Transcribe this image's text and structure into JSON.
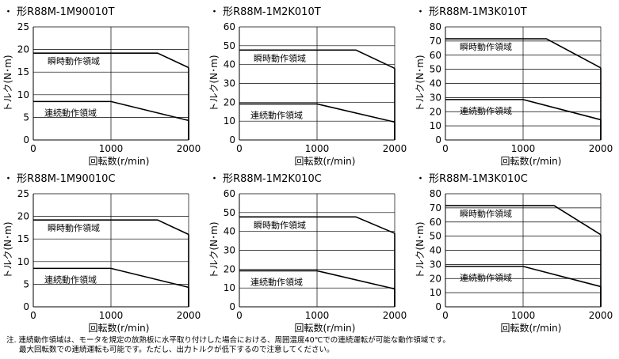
{
  "chart_data": [
    {
      "type": "line",
      "title": "・ 形R88M-1M90010T",
      "ylabel": "トルク(N･m)",
      "xlabel": "回転数(r/min)",
      "ylim": [
        0,
        25
      ],
      "yticks": [
        0,
        5,
        10,
        15,
        20,
        25
      ],
      "xlim": [
        0,
        2000
      ],
      "xticks": [
        0,
        1000,
        2000
      ],
      "series": [
        {
          "name": "瞬時動作領域",
          "x": [
            0,
            1600,
            2000
          ],
          "y": [
            19.2,
            19.2,
            16.0
          ]
        },
        {
          "name": "連続動作領域",
          "x": [
            0,
            1000,
            2000
          ],
          "y": [
            8.5,
            8.5,
            4.3
          ]
        }
      ]
    },
    {
      "type": "line",
      "title": "・ 形R88M-1M2K010T",
      "ylabel": "トルク(N･m)",
      "xlabel": "回転数(r/min)",
      "ylim": [
        0,
        60
      ],
      "yticks": [
        0,
        10,
        20,
        30,
        40,
        50,
        60
      ],
      "xlim": [
        0,
        2000
      ],
      "xticks": [
        0,
        1000,
        2000
      ],
      "series": [
        {
          "name": "瞬時動作領域",
          "x": [
            0,
            1500,
            2000
          ],
          "y": [
            47.7,
            47.7,
            38.0
          ]
        },
        {
          "name": "連続動作領域",
          "x": [
            0,
            1000,
            2000
          ],
          "y": [
            19.1,
            19.1,
            9.5
          ]
        }
      ]
    },
    {
      "type": "line",
      "title": "・ 形R88M-1M3K010T",
      "ylabel": "トルク(N･m)",
      "xlabel": "回転数(r/min)",
      "ylim": [
        0,
        80
      ],
      "yticks": [
        0,
        10,
        20,
        30,
        40,
        50,
        60,
        70,
        80
      ],
      "xlim": [
        0,
        2000
      ],
      "xticks": [
        0,
        1000,
        2000
      ],
      "series": [
        {
          "name": "瞬時動作領域",
          "x": [
            0,
            1300,
            2000
          ],
          "y": [
            71.6,
            71.6,
            51.0
          ]
        },
        {
          "name": "連続動作領域",
          "x": [
            0,
            1000,
            2000
          ],
          "y": [
            28.6,
            28.6,
            14.3
          ]
        }
      ]
    },
    {
      "type": "line",
      "title": "・ 形R88M-1M90010C",
      "ylabel": "トルク(N･m)",
      "xlabel": "回転数(r/min)",
      "ylim": [
        0,
        25
      ],
      "yticks": [
        0,
        5,
        10,
        15,
        20,
        25
      ],
      "xlim": [
        0,
        2000
      ],
      "xticks": [
        0,
        1000,
        2000
      ],
      "series": [
        {
          "name": "瞬時動作領域",
          "x": [
            0,
            1600,
            2000
          ],
          "y": [
            19.2,
            19.2,
            16.0
          ]
        },
        {
          "name": "連続動作領域",
          "x": [
            0,
            1000,
            2000
          ],
          "y": [
            8.5,
            8.5,
            4.3
          ]
        }
      ]
    },
    {
      "type": "line",
      "title": "・ 形R88M-1M2K010C",
      "ylabel": "トルク(N･m)",
      "xlabel": "回転数(r/min)",
      "ylim": [
        0,
        60
      ],
      "yticks": [
        0,
        10,
        20,
        30,
        40,
        50,
        60
      ],
      "xlim": [
        0,
        2000
      ],
      "xticks": [
        0,
        1000,
        2000
      ],
      "series": [
        {
          "name": "瞬時動作領域",
          "x": [
            0,
            1500,
            2000
          ],
          "y": [
            47.7,
            47.7,
            39.0
          ]
        },
        {
          "name": "連続動作領域",
          "x": [
            0,
            1000,
            2000
          ],
          "y": [
            19.1,
            19.1,
            9.5
          ]
        }
      ]
    },
    {
      "type": "line",
      "title": "・ 形R88M-1M3K010C",
      "ylabel": "トルク(N･m)",
      "xlabel": "回転数(r/min)",
      "ylim": [
        0,
        80
      ],
      "yticks": [
        0,
        10,
        20,
        30,
        40,
        50,
        60,
        70,
        80
      ],
      "xlim": [
        0,
        2000
      ],
      "xticks": [
        0,
        1000,
        2000
      ],
      "series": [
        {
          "name": "瞬時動作領域",
          "x": [
            0,
            1400,
            2000
          ],
          "y": [
            71.6,
            71.6,
            51.0
          ]
        },
        {
          "name": "連続動作領域",
          "x": [
            0,
            1000,
            2000
          ],
          "y": [
            28.6,
            28.6,
            14.3
          ]
        }
      ]
    }
  ],
  "note": {
    "line1": "注. 連続動作領域は、モータを規定の放熱板に水平取り付けした場合における、周囲温度40℃での連続運転が可能な動作領域です。",
    "line2": "最大回転数での連続運転も可能です。ただし、出力トルクが低下するので注意してください。"
  }
}
